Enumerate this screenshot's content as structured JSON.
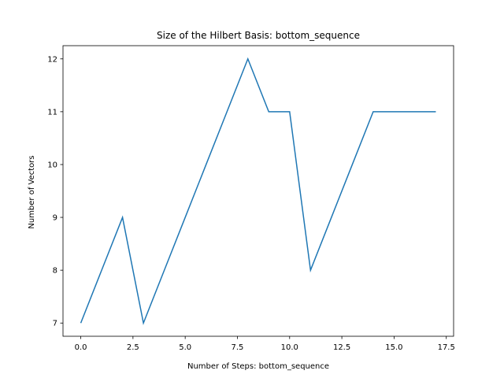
{
  "chart_data": {
    "type": "line",
    "title": "Size of the Hilbert Basis: bottom_sequence",
    "xlabel": "Number of Steps: bottom_sequence",
    "ylabel": "Number of Vectors",
    "xlim": [
      -0.85,
      17.85
    ],
    "ylim": [
      6.75,
      12.25
    ],
    "xticks": [
      0.0,
      2.5,
      5.0,
      7.5,
      10.0,
      12.5,
      15.0,
      17.5
    ],
    "xtick_labels": [
      "0.0",
      "2.5",
      "5.0",
      "7.5",
      "10.0",
      "12.5",
      "15.0",
      "17.5"
    ],
    "yticks": [
      7,
      8,
      9,
      10,
      11,
      12
    ],
    "ytick_labels": [
      "7",
      "8",
      "9",
      "10",
      "11",
      "12"
    ],
    "grid": false,
    "series": [
      {
        "x": [
          0,
          1,
          2,
          3,
          4,
          5,
          6,
          7,
          8,
          9,
          10,
          11,
          12,
          13,
          14,
          15,
          16,
          17
        ],
        "values": [
          7,
          8,
          9,
          7,
          8,
          9,
          10,
          11,
          12,
          11,
          11,
          8,
          9,
          10,
          11,
          11,
          11,
          11
        ],
        "color": "#1f77b4"
      }
    ]
  }
}
